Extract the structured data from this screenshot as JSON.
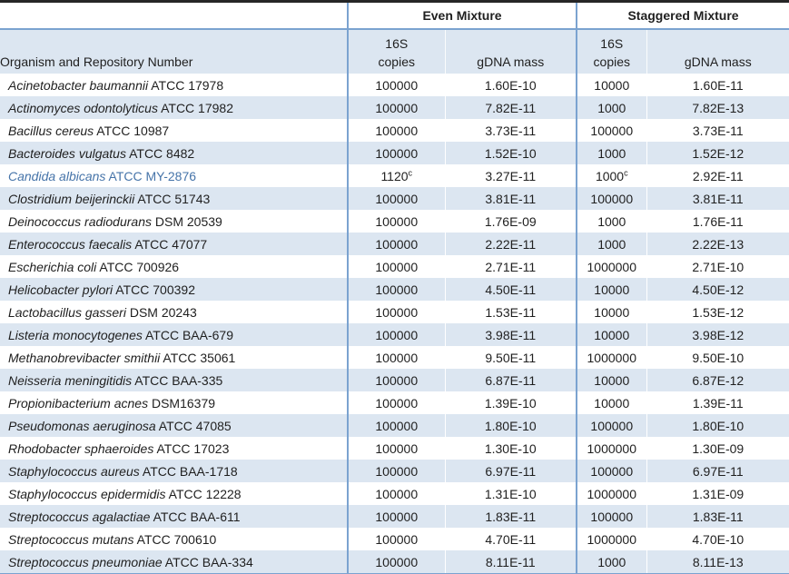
{
  "header": {
    "organism_label": "Organism and Repository Number",
    "groups": [
      {
        "label": "Even Mixture",
        "copies_line1": "16S",
        "copies_line2": "copies",
        "gdna_label": "gDNA mass"
      },
      {
        "label": "Staggered Mixture",
        "copies_line1": "16S",
        "copies_line2": "copies",
        "gdna_label": "gDNA mass"
      }
    ]
  },
  "colors": {
    "stripe_fill": "#dce6f1",
    "rule_blue": "#7ba3d0",
    "rule_top_black": "#262626",
    "body_text": "#1f1f1f",
    "highlight_text": "#4674a9"
  },
  "table": {
    "rows": [
      {
        "organism_italic": "Acinetobacter baumannii",
        "organism_regular": "ATCC 17978",
        "even_copies": "100000",
        "even_copies_sup": "",
        "even_gdna": "1.60E-10",
        "stag_copies": "10000",
        "stag_copies_sup": "",
        "stag_gdna": "1.60E-11",
        "highlighted": false
      },
      {
        "organism_italic": "Actinomyces odontolyticus",
        "organism_regular": "ATCC 17982",
        "even_copies": "100000",
        "even_copies_sup": "",
        "even_gdna": "7.82E-11",
        "stag_copies": "1000",
        "stag_copies_sup": "",
        "stag_gdna": "7.82E-13",
        "highlighted": false
      },
      {
        "organism_italic": "Bacillus cereus",
        "organism_regular": "ATCC 10987",
        "even_copies": "100000",
        "even_copies_sup": "",
        "even_gdna": "3.73E-11",
        "stag_copies": "100000",
        "stag_copies_sup": "",
        "stag_gdna": "3.73E-11",
        "highlighted": false
      },
      {
        "organism_italic": "Bacteroides vulgatus",
        "organism_regular": "ATCC 8482",
        "even_copies": "100000",
        "even_copies_sup": "",
        "even_gdna": "1.52E-10",
        "stag_copies": "1000",
        "stag_copies_sup": "",
        "stag_gdna": "1.52E-12",
        "highlighted": false
      },
      {
        "organism_italic": "Candida albicans",
        "organism_regular": "ATCC MY-2876",
        "even_copies": "1120",
        "even_copies_sup": "c",
        "even_gdna": "3.27E-11",
        "stag_copies": "1000",
        "stag_copies_sup": "c",
        "stag_gdna": "2.92E-11",
        "highlighted": true
      },
      {
        "organism_italic": "Clostridium beijerinckii",
        "organism_regular": "ATCC 51743",
        "even_copies": "100000",
        "even_copies_sup": "",
        "even_gdna": "3.81E-11",
        "stag_copies": "100000",
        "stag_copies_sup": "",
        "stag_gdna": "3.81E-11",
        "highlighted": false
      },
      {
        "organism_italic": "Deinococcus radiodurans",
        "organism_regular": "DSM 20539",
        "even_copies": "100000",
        "even_copies_sup": "",
        "even_gdna": "1.76E-09",
        "stag_copies": "1000",
        "stag_copies_sup": "",
        "stag_gdna": "1.76E-11",
        "highlighted": false
      },
      {
        "organism_italic": "Enterococcus faecalis",
        "organism_regular": "ATCC 47077",
        "even_copies": "100000",
        "even_copies_sup": "",
        "even_gdna": "2.22E-11",
        "stag_copies": "1000",
        "stag_copies_sup": "",
        "stag_gdna": "2.22E-13",
        "highlighted": false
      },
      {
        "organism_italic": "Escherichia coli",
        "organism_regular": "ATCC 700926",
        "even_copies": "100000",
        "even_copies_sup": "",
        "even_gdna": "2.71E-11",
        "stag_copies": "1000000",
        "stag_copies_sup": "",
        "stag_gdna": "2.71E-10",
        "highlighted": false
      },
      {
        "organism_italic": "Helicobacter pylori",
        "organism_regular": "ATCC 700392",
        "even_copies": "100000",
        "even_copies_sup": "",
        "even_gdna": "4.50E-11",
        "stag_copies": "10000",
        "stag_copies_sup": "",
        "stag_gdna": "4.50E-12",
        "highlighted": false
      },
      {
        "organism_italic": "Lactobacillus gasseri",
        "organism_regular": "DSM 20243",
        "even_copies": "100000",
        "even_copies_sup": "",
        "even_gdna": "1.53E-11",
        "stag_copies": "10000",
        "stag_copies_sup": "",
        "stag_gdna": "1.53E-12",
        "highlighted": false
      },
      {
        "organism_italic": "Listeria monocytogenes",
        "organism_regular": "ATCC BAA-679",
        "even_copies": "100000",
        "even_copies_sup": "",
        "even_gdna": "3.98E-11",
        "stag_copies": "10000",
        "stag_copies_sup": "",
        "stag_gdna": "3.98E-12",
        "highlighted": false
      },
      {
        "organism_italic": "Methanobrevibacter smithii",
        "organism_regular": "ATCC 35061",
        "even_copies": "100000",
        "even_copies_sup": "",
        "even_gdna": "9.50E-11",
        "stag_copies": "1000000",
        "stag_copies_sup": "",
        "stag_gdna": "9.50E-10",
        "highlighted": false
      },
      {
        "organism_italic": "Neisseria meningitidis",
        "organism_regular": "ATCC BAA-335",
        "even_copies": "100000",
        "even_copies_sup": "",
        "even_gdna": "6.87E-11",
        "stag_copies": "10000",
        "stag_copies_sup": "",
        "stag_gdna": "6.87E-12",
        "highlighted": false
      },
      {
        "organism_italic": "Propionibacterium acnes",
        "organism_regular": "DSM16379",
        "even_copies": "100000",
        "even_copies_sup": "",
        "even_gdna": "1.39E-10",
        "stag_copies": "10000",
        "stag_copies_sup": "",
        "stag_gdna": "1.39E-11",
        "highlighted": false
      },
      {
        "organism_italic": "Pseudomonas aeruginosa",
        "organism_regular": "ATCC 47085",
        "even_copies": "100000",
        "even_copies_sup": "",
        "even_gdna": "1.80E-10",
        "stag_copies": "100000",
        "stag_copies_sup": "",
        "stag_gdna": "1.80E-10",
        "highlighted": false
      },
      {
        "organism_italic": "Rhodobacter sphaeroides",
        "organism_regular": "ATCC 17023",
        "even_copies": "100000",
        "even_copies_sup": "",
        "even_gdna": "1.30E-10",
        "stag_copies": "1000000",
        "stag_copies_sup": "",
        "stag_gdna": "1.30E-09",
        "highlighted": false
      },
      {
        "organism_italic": "Staphylococcus aureus",
        "organism_regular": "ATCC BAA-1718",
        "even_copies": "100000",
        "even_copies_sup": "",
        "even_gdna": "6.97E-11",
        "stag_copies": "100000",
        "stag_copies_sup": "",
        "stag_gdna": "6.97E-11",
        "highlighted": false
      },
      {
        "organism_italic": "Staphylococcus epidermidis",
        "organism_regular": "ATCC 12228",
        "even_copies": "100000",
        "even_copies_sup": "",
        "even_gdna": "1.31E-10",
        "stag_copies": "1000000",
        "stag_copies_sup": "",
        "stag_gdna": "1.31E-09",
        "highlighted": false
      },
      {
        "organism_italic": "Streptococcus agalactiae",
        "organism_regular": "ATCC BAA-611",
        "even_copies": "100000",
        "even_copies_sup": "",
        "even_gdna": "1.83E-11",
        "stag_copies": "100000",
        "stag_copies_sup": "",
        "stag_gdna": "1.83E-11",
        "highlighted": false
      },
      {
        "organism_italic": "Streptococcus mutans",
        "organism_regular": "ATCC 700610",
        "even_copies": "100000",
        "even_copies_sup": "",
        "even_gdna": "4.70E-11",
        "stag_copies": "1000000",
        "stag_copies_sup": "",
        "stag_gdna": "4.70E-10",
        "highlighted": false
      },
      {
        "organism_italic": "Streptococcus pneumoniae",
        "organism_regular": "ATCC BAA-334",
        "even_copies": "100000",
        "even_copies_sup": "",
        "even_gdna": "8.11E-11",
        "stag_copies": "1000",
        "stag_copies_sup": "",
        "stag_gdna": "8.11E-13",
        "highlighted": false
      }
    ]
  }
}
